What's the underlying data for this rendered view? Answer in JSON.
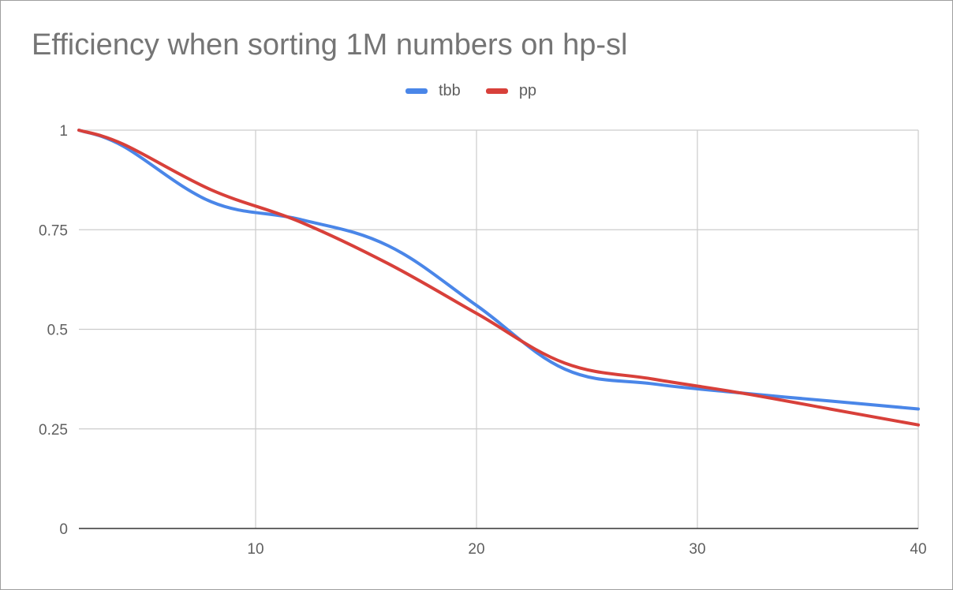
{
  "chart_data": {
    "type": "line",
    "title": "Efficiency when sorting 1M numbers on hp-sl",
    "xlabel": "",
    "ylabel": "",
    "xlim": [
      2,
      40
    ],
    "ylim": [
      0,
      1
    ],
    "x_ticks": [
      10,
      20,
      30,
      40
    ],
    "x_tick_labels": [
      "10",
      "20",
      "30",
      "40"
    ],
    "y_ticks": [
      0,
      0.25,
      0.5,
      0.75,
      1
    ],
    "y_tick_labels": [
      "0",
      "0.25",
      "0.5",
      "0.75",
      "1"
    ],
    "grid": true,
    "legend": "top",
    "series": [
      {
        "name": "tbb",
        "color": "#4a86e8",
        "x": [
          2,
          4,
          8,
          12,
          16,
          20,
          24,
          28,
          32,
          36,
          40
        ],
        "y": [
          1.0,
          0.96,
          0.82,
          0.776,
          0.71,
          0.56,
          0.4,
          0.363,
          0.34,
          0.32,
          0.3
        ]
      },
      {
        "name": "pp",
        "color": "#d8403a",
        "x": [
          2,
          4,
          8,
          12,
          16,
          20,
          24,
          28,
          32,
          36,
          40
        ],
        "y": [
          1.0,
          0.965,
          0.85,
          0.77,
          0.665,
          0.54,
          0.415,
          0.375,
          0.34,
          0.3,
          0.26
        ]
      }
    ]
  }
}
